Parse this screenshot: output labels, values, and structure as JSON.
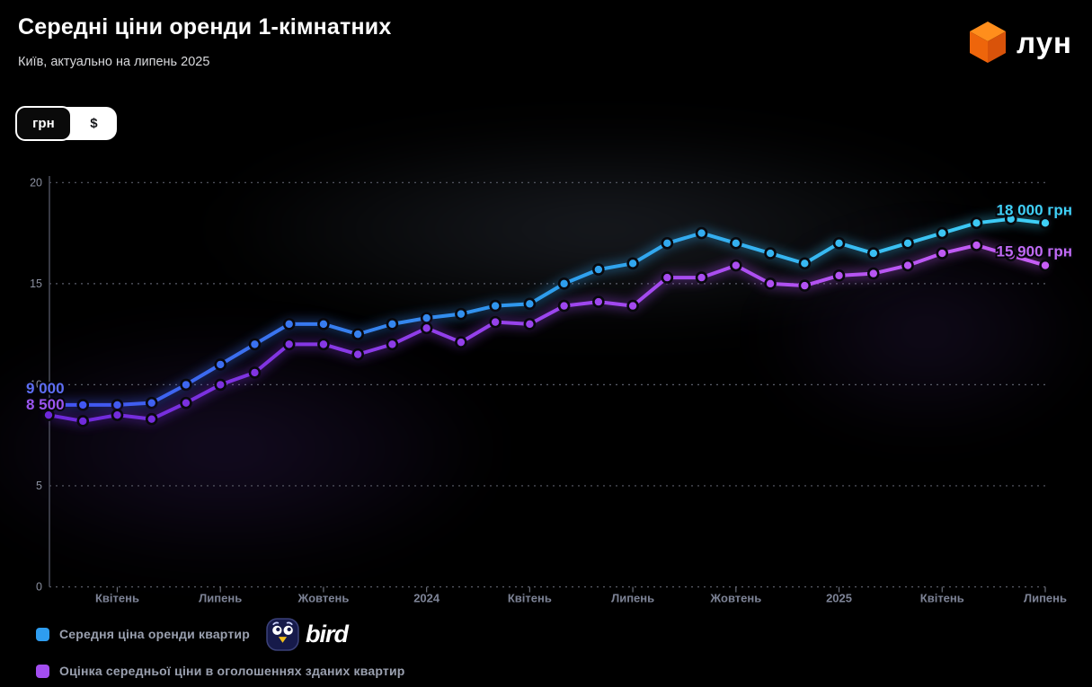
{
  "header": {
    "title": "Середні ціни оренди 1-кімнатних",
    "subtitle": "Київ, актуально на липень 2025",
    "brand": "лун",
    "brand_cube_colors": {
      "top": "#ff8e1c",
      "left": "#ee650b",
      "right": "#d9530a"
    }
  },
  "currency_toggle": {
    "options": [
      "грн",
      "$"
    ],
    "selected": "грн"
  },
  "chart_data": {
    "type": "line",
    "title": "Середні ціни оренди 1-кімнатних, Київ",
    "ylabel": "",
    "xlabel": "",
    "ylim": [
      0,
      20
    ],
    "y_ticks": [
      0,
      5,
      10,
      15,
      20
    ],
    "grid": "dotted-horizontal",
    "x_ticks": [
      {
        "label": "Квітень",
        "index": 2
      },
      {
        "label": "Липень",
        "index": 5
      },
      {
        "label": "Жовтень",
        "index": 8
      },
      {
        "label": "2024",
        "index": 11
      },
      {
        "label": "Квітень",
        "index": 14
      },
      {
        "label": "Липень",
        "index": 17
      },
      {
        "label": "Жовтень",
        "index": 20
      },
      {
        "label": "2025",
        "index": 23
      },
      {
        "label": "Квітень",
        "index": 26
      },
      {
        "label": "Липень",
        "index": 29
      }
    ],
    "values_unit": "тис. грн",
    "series": [
      {
        "name": "Середня ціна оренди квартир",
        "color": "#2e9df0",
        "gradient": [
          "#4353f2",
          "#2e9ded",
          "#3fd0f6"
        ],
        "values": [
          9.0,
          9.0,
          9.0,
          9.1,
          10.0,
          11.0,
          12.0,
          13.0,
          13.0,
          12.5,
          13.0,
          13.3,
          13.5,
          13.9,
          14.0,
          15.0,
          15.7,
          16.0,
          17.0,
          17.5,
          17.0,
          16.5,
          16.0,
          17.0,
          16.5,
          17.0,
          17.5,
          18.0,
          18.2,
          18.0
        ],
        "start_label": {
          "text": "9 000",
          "color": "#5e6ef5"
        },
        "end_label": {
          "text": "18 000 грн",
          "color": "#3fd0f6"
        }
      },
      {
        "name": "Оцінка середньої ціни в оголошеннях зданих квартир",
        "color": "#a34ef0",
        "gradient": [
          "#6d28d9",
          "#9b45ee",
          "#c75ef5"
        ],
        "values": [
          8.5,
          8.2,
          8.5,
          8.3,
          9.1,
          10.0,
          10.6,
          12.0,
          12.0,
          11.5,
          12.0,
          12.8,
          12.1,
          13.1,
          13.0,
          13.9,
          14.1,
          13.9,
          15.3,
          15.3,
          15.9,
          15.0,
          14.9,
          15.4,
          15.5,
          15.9,
          16.5,
          16.9,
          16.4,
          15.9
        ],
        "start_label": {
          "text": "8 500",
          "color": "#9b55f0"
        },
        "end_label": {
          "text": "15 900 грн",
          "color": "#c06af5"
        }
      }
    ],
    "legend_position": "bottom-left"
  },
  "legend_partner": "bird"
}
